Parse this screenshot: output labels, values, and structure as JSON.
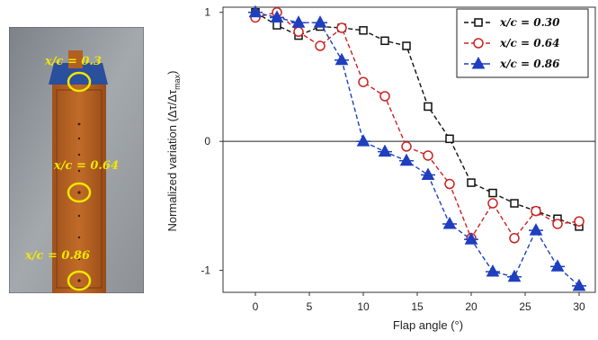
{
  "photo": {
    "labels": [
      "x/c = 0.3",
      "x/c = 0.64",
      "x/c = 0.86"
    ],
    "label_color": "#f2e600"
  },
  "chart_data": {
    "type": "line",
    "xlabel": "Flap angle (°)",
    "ylabel": "Normalized variation (Δτ/Δτ",
    "ylabel_sub": "max",
    "ylabel_close": ")",
    "xlim": [
      -3,
      31.5
    ],
    "ylim": [
      -1.17,
      1.04
    ],
    "xticks": [
      0,
      5,
      10,
      15,
      20,
      25,
      30
    ],
    "yticks": [
      1,
      0,
      -1
    ],
    "legend_position": "top-right",
    "zero_line": true,
    "series": [
      {
        "name": "x/c = 0.30",
        "color": "#111111",
        "marker": "square",
        "x": [
          0,
          2,
          4,
          6,
          8,
          10,
          12,
          14,
          16,
          18,
          20,
          22,
          24,
          26,
          28,
          30
        ],
        "y": [
          1.0,
          0.9,
          0.82,
          0.89,
          0.88,
          0.86,
          0.78,
          0.74,
          0.27,
          0.02,
          -0.32,
          -0.4,
          -0.48,
          -0.54,
          -0.6,
          -0.66
        ]
      },
      {
        "name": "x/c = 0.64",
        "color": "#cc2222",
        "marker": "circle",
        "x": [
          0,
          2,
          4,
          6,
          8,
          10,
          12,
          14,
          16,
          18,
          20,
          22,
          24,
          26,
          28,
          30
        ],
        "y": [
          0.96,
          1.0,
          0.85,
          0.74,
          0.88,
          0.46,
          0.35,
          -0.04,
          -0.11,
          -0.33,
          -0.75,
          -0.48,
          -0.75,
          -0.54,
          -0.64,
          -0.62
        ]
      },
      {
        "name": "x/c = 0.86",
        "color": "#1f3fbf",
        "marker": "triangle",
        "x": [
          0,
          2,
          4,
          6,
          8,
          10,
          12,
          14,
          16,
          18,
          20,
          22,
          24,
          26,
          28,
          30
        ],
        "y": [
          1.0,
          0.96,
          0.92,
          0.92,
          0.63,
          0.0,
          -0.08,
          -0.15,
          -0.26,
          -0.64,
          -0.76,
          -1.01,
          -1.05,
          -0.69,
          -0.97,
          -1.12
        ]
      }
    ]
  }
}
